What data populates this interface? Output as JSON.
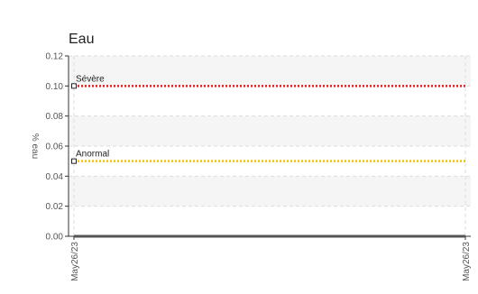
{
  "chart_data": {
    "type": "line",
    "title": "Eau",
    "ylabel": "% eau",
    "xlabel": "",
    "ylim": [
      0,
      0.12
    ],
    "yticks": [
      "0.00",
      "0.02",
      "0.04",
      "0.06",
      "0.08",
      "0.10",
      "0.12"
    ],
    "xticks": [
      "May26/23",
      "May26/23"
    ],
    "grid": true,
    "series": [
      {
        "name": "Sévère",
        "y": 0.1,
        "color": "#e02020",
        "style": "dotted"
      },
      {
        "name": "Anormal",
        "y": 0.05,
        "color": "#f2c200",
        "style": "dotted"
      },
      {
        "name": "",
        "y": 0.0,
        "color": "#555555",
        "style": "solid"
      }
    ]
  }
}
